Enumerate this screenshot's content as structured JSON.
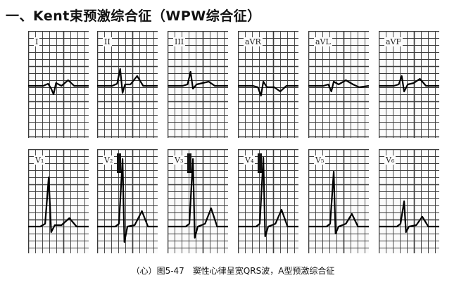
{
  "heading": "一、Kent束预激综合征（WPW综合征）",
  "leads_row1": [
    "I",
    "II",
    "III",
    "aVR",
    "aVL",
    "aVF"
  ],
  "leads_row2": [
    "V₁",
    "V₂",
    "V₃",
    "V₄",
    "V₅",
    "V₆"
  ],
  "caption": "（心）图5-47　窦性心律呈宽QRS波，A型预激综合征",
  "colors": {
    "grid": "#3a3a3a",
    "paper": "#fbfbfb",
    "trace": "#000000"
  }
}
